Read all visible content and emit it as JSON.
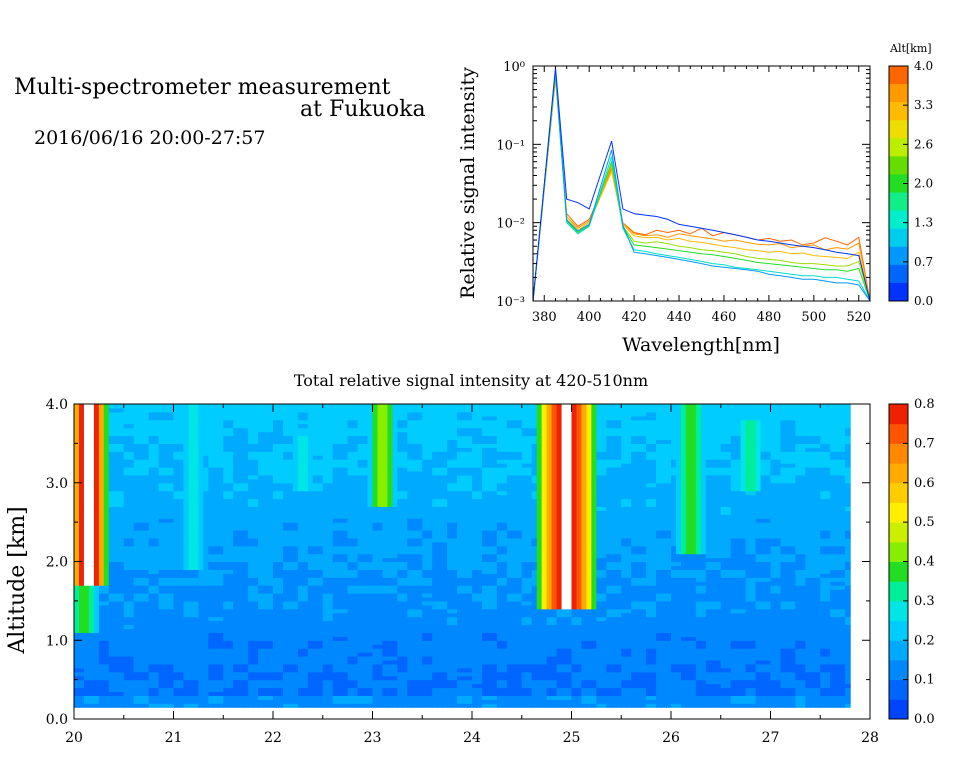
{
  "header": {
    "title_line1": "Multi-spectrometer measurement",
    "title_line2": "at Fukuoka",
    "datetime": "2016/06/16 20:00-27:57"
  },
  "chart_data": [
    {
      "type": "line",
      "title": "",
      "xlabel": "Wavelength[nm]",
      "ylabel": "Relative signal intensity",
      "xlim": [
        375,
        525
      ],
      "ylim": [
        0.001,
        1
      ],
      "yscale": "log",
      "x_ticks": [
        380,
        400,
        420,
        440,
        460,
        480,
        500,
        520
      ],
      "y_ticks": [
        {
          "value": 0.001,
          "label": "10⁻³"
        },
        {
          "value": 0.01,
          "label": "10⁻²"
        },
        {
          "value": 0.1,
          "label": "10⁻¹"
        },
        {
          "value": 1,
          "label": "10⁰"
        }
      ],
      "colorbar": {
        "label": "Alt[km]",
        "ticks": [
          "4.0",
          "3.3",
          "2.6",
          "2.0",
          "1.3",
          "0.7",
          "0.0"
        ],
        "colors": [
          "#ff6600",
          "#ff9900",
          "#ffbb00",
          "#eedd00",
          "#bbee00",
          "#66dd00",
          "#22dd22",
          "#11ee88",
          "#00eecc",
          "#00ccee",
          "#0099ff",
          "#0066ff",
          "#0033ff"
        ]
      },
      "x": [
        375,
        385,
        390,
        395,
        400,
        410,
        415,
        420,
        425,
        430,
        435,
        440,
        445,
        450,
        455,
        460,
        465,
        470,
        475,
        480,
        485,
        490,
        495,
        500,
        505,
        510,
        515,
        520,
        525
      ],
      "series": [
        {
          "color": "#ff6600",
          "values": [
            0.001,
            0.7,
            0.013,
            0.009,
            0.011,
            0.05,
            0.01,
            0.0075,
            0.007,
            0.008,
            0.0075,
            0.008,
            0.0072,
            0.0085,
            0.0068,
            0.0075,
            0.007,
            0.0065,
            0.006,
            0.0063,
            0.0058,
            0.006,
            0.0052,
            0.0055,
            0.0064,
            0.0058,
            0.0052,
            0.0065,
            0.001
          ]
        },
        {
          "color": "#ff9900",
          "values": [
            0.001,
            0.7,
            0.012,
            0.0085,
            0.0105,
            0.048,
            0.0098,
            0.0072,
            0.0068,
            0.007,
            0.0065,
            0.0072,
            0.0068,
            0.0065,
            0.0062,
            0.0058,
            0.006,
            0.0056,
            0.0053,
            0.0052,
            0.0054,
            0.0048,
            0.005,
            0.0052,
            0.0045,
            0.0048,
            0.0046,
            0.0055,
            0.001
          ]
        },
        {
          "color": "#ffbb00",
          "values": [
            0.001,
            0.72,
            0.012,
            0.008,
            0.01,
            0.045,
            0.0095,
            0.0068,
            0.0064,
            0.0065,
            0.006,
            0.0063,
            0.0058,
            0.0056,
            0.0053,
            0.005,
            0.0048,
            0.0045,
            0.0044,
            0.0042,
            0.0043,
            0.004,
            0.0041,
            0.0038,
            0.0037,
            0.0036,
            0.0035,
            0.0042,
            0.001
          ]
        },
        {
          "color": "#99dd00",
          "values": [
            0.001,
            0.75,
            0.011,
            0.0078,
            0.0095,
            0.055,
            0.009,
            0.0058,
            0.0055,
            0.0057,
            0.0054,
            0.005,
            0.0048,
            0.0045,
            0.0044,
            0.0042,
            0.004,
            0.0037,
            0.0035,
            0.0034,
            0.0033,
            0.0031,
            0.003,
            0.003,
            0.0029,
            0.0028,
            0.0028,
            0.0032,
            0.001
          ]
        },
        {
          "color": "#22dd22",
          "values": [
            0.001,
            0.8,
            0.0105,
            0.0075,
            0.0092,
            0.06,
            0.0088,
            0.0052,
            0.005,
            0.0048,
            0.0046,
            0.0044,
            0.0042,
            0.004,
            0.0039,
            0.0037,
            0.0035,
            0.0033,
            0.0031,
            0.003,
            0.0029,
            0.0028,
            0.0027,
            0.0026,
            0.0025,
            0.0025,
            0.0024,
            0.0026,
            0.001
          ]
        },
        {
          "color": "#00ddcc",
          "values": [
            0.001,
            0.85,
            0.01,
            0.0072,
            0.009,
            0.07,
            0.0085,
            0.0045,
            0.0043,
            0.004,
            0.0038,
            0.0036,
            0.0034,
            0.0032,
            0.003,
            0.0029,
            0.0027,
            0.0026,
            0.0025,
            0.0024,
            0.0023,
            0.0022,
            0.0021,
            0.0021,
            0.002,
            0.002,
            0.0019,
            0.0018,
            0.001
          ]
        },
        {
          "color": "#0099ff",
          "values": [
            0.001,
            0.9,
            0.0108,
            0.0078,
            0.0095,
            0.085,
            0.0092,
            0.0042,
            0.004,
            0.0038,
            0.0036,
            0.0034,
            0.0032,
            0.003,
            0.0028,
            0.0027,
            0.0026,
            0.0025,
            0.0024,
            0.0022,
            0.0021,
            0.002,
            0.0019,
            0.0019,
            0.0018,
            0.0017,
            0.0017,
            0.0016,
            0.001
          ]
        },
        {
          "color": "#0033ff",
          "values": [
            0.001,
            0.95,
            0.02,
            0.018,
            0.015,
            0.11,
            0.015,
            0.013,
            0.0125,
            0.012,
            0.011,
            0.0095,
            0.009,
            0.0085,
            0.008,
            0.0075,
            0.007,
            0.0065,
            0.006,
            0.0058,
            0.0055,
            0.0052,
            0.005,
            0.0048,
            0.0045,
            0.0042,
            0.004,
            0.0038,
            0.001
          ]
        }
      ]
    },
    {
      "type": "heatmap",
      "title": "Total relative signal intensity at 420-510nm",
      "xlabel": "",
      "ylabel": "Altitude [km]",
      "xlim": [
        20,
        28
      ],
      "ylim": [
        0,
        4
      ],
      "data_x_range": [
        20,
        27.8
      ],
      "data_y_range": [
        0.15,
        4.0
      ],
      "x_ticks": [
        "20",
        "21",
        "22",
        "23",
        "24",
        "25",
        "26",
        "27",
        "28"
      ],
      "y_ticks": [
        "0.0",
        "1.0",
        "2.0",
        "3.0",
        "4.0"
      ],
      "colorbar": {
        "ticks": [
          "0.0",
          "0.1",
          "0.2",
          "0.3",
          "0.4",
          "0.5",
          "0.6",
          "0.7",
          "0.8"
        ],
        "vmin": 0,
        "vmax": 0.8,
        "colors": [
          "#0044ff",
          "#0066ff",
          "#0088ff",
          "#00aaff",
          "#00ccff",
          "#00e5e5",
          "#00ee99",
          "#22dd22",
          "#88ee00",
          "#ccee00",
          "#ffee00",
          "#ffcc00",
          "#ffaa00",
          "#ff8800",
          "#ff5500",
          "#ee2200"
        ]
      },
      "features": [
        {
          "desc": "saturated",
          "x": [
            20.0,
            20.3
          ],
          "alt": [
            1.8,
            4.0
          ],
          "value": 0.85
        },
        {
          "desc": "plume",
          "x": [
            20.0,
            20.2
          ],
          "alt": [
            1.2,
            1.8
          ],
          "value": 0.4
        },
        {
          "desc": "saturated",
          "x": [
            24.7,
            25.2
          ],
          "alt": [
            1.5,
            4.0
          ],
          "value": 0.85
        },
        {
          "desc": "plume",
          "x": [
            23.0,
            23.2
          ],
          "alt": [
            2.8,
            4.0
          ],
          "value": 0.45
        },
        {
          "desc": "plume",
          "x": [
            26.1,
            26.3
          ],
          "alt": [
            2.2,
            4.0
          ],
          "value": 0.4
        },
        {
          "desc": "plume",
          "x": [
            21.1,
            21.3
          ],
          "alt": [
            2.0,
            4.0
          ],
          "value": 0.3
        },
        {
          "desc": "plume",
          "x": [
            22.2,
            22.4
          ],
          "alt": [
            3.0,
            3.6
          ],
          "value": 0.3
        },
        {
          "desc": "plume",
          "x": [
            26.7,
            26.9
          ],
          "alt": [
            3.0,
            3.8
          ],
          "value": 0.35
        }
      ]
    }
  ]
}
